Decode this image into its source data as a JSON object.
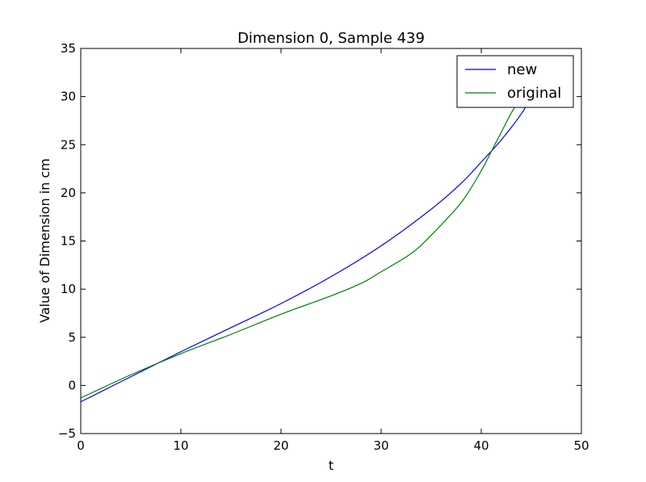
{
  "chart_data": {
    "type": "line",
    "title": "Dimension 0, Sample 439",
    "xlabel": "t",
    "ylabel": "Value of Dimension in cm",
    "xlim": [
      0,
      50
    ],
    "ylim": [
      -5,
      35
    ],
    "xticks": [
      0,
      10,
      20,
      30,
      40,
      50
    ],
    "yticks": [
      -5,
      0,
      5,
      10,
      15,
      20,
      25,
      30,
      35
    ],
    "xtick_labels": [
      "0",
      "10",
      "20",
      "30",
      "40",
      "50"
    ],
    "ytick_labels": [
      "−5",
      "0",
      "5",
      "10",
      "15",
      "20",
      "25",
      "30",
      "35"
    ],
    "grid": false,
    "legend": "top-right",
    "series": [
      {
        "name": "new",
        "color": "#0000ff",
        "x": [
          0,
          5,
          10,
          15,
          20,
          25,
          30,
          35,
          38,
          40,
          42,
          44,
          45
        ],
        "y": [
          -1.7,
          0.9,
          3.5,
          6.0,
          8.5,
          11.3,
          14.5,
          18.3,
          21.0,
          23.2,
          25.5,
          28.2,
          30.0
        ]
      },
      {
        "name": "original",
        "color": "#008000",
        "x": [
          0,
          5,
          10,
          15,
          20,
          25,
          28,
          30,
          33,
          35,
          38,
          40,
          41,
          42,
          43,
          44
        ],
        "y": [
          -1.3,
          1.1,
          3.3,
          5.3,
          7.4,
          9.3,
          10.6,
          11.8,
          13.7,
          15.6,
          19.0,
          22.3,
          24.3,
          26.3,
          28.3,
          30.0
        ]
      }
    ]
  }
}
